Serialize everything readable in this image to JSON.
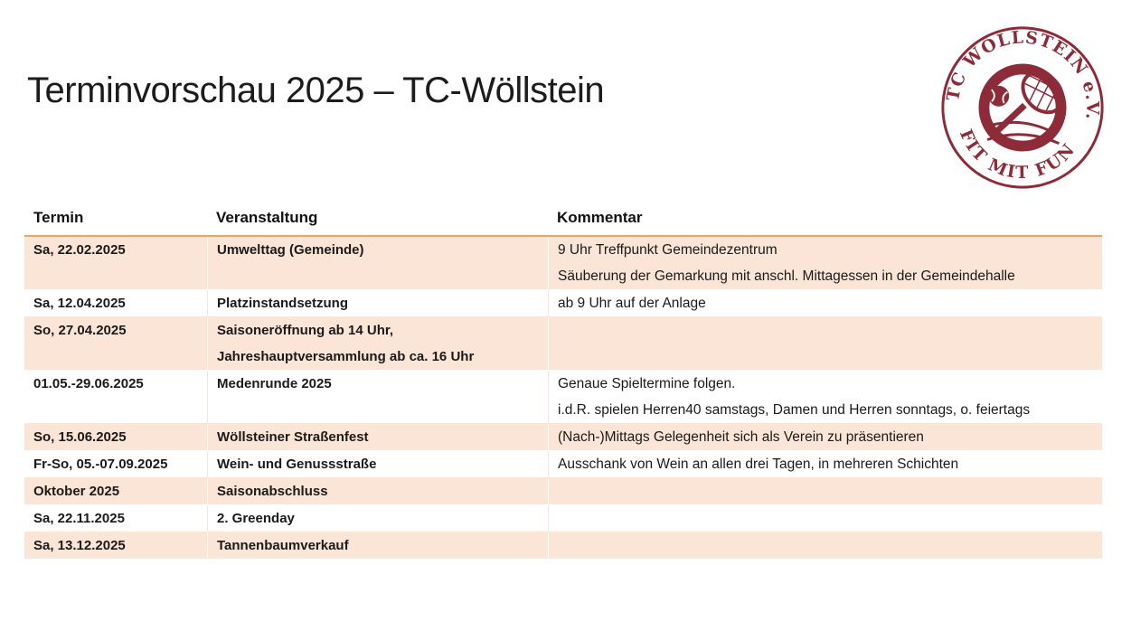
{
  "page": {
    "title": "Terminvorschau 2025 – TC-Wöllstein"
  },
  "logo": {
    "top_text": "TC WÖLLSTEIN e.V.",
    "bottom_text": "FIT MIT FUN",
    "color": "#8D2B38"
  },
  "colors": {
    "row_shade": "#FBE5D6",
    "header_rule": "#F0A263",
    "logo_maroon": "#8D2B38",
    "text": "#1a1a1a"
  },
  "table": {
    "headers": [
      "Termin",
      "Veranstaltung",
      "Kommentar"
    ],
    "rows": [
      {
        "termin": "Sa, 22.02.2025",
        "veranstaltung": [
          "Umwelttag (Gemeinde)"
        ],
        "kommentar": [
          "9 Uhr Treffpunkt Gemeindezentrum",
          "Säuberung der Gemarkung mit anschl. Mittagessen in der Gemeindehalle"
        ],
        "shaded": true
      },
      {
        "termin": "Sa, 12.04.2025",
        "veranstaltung": [
          "Platzinstandsetzung"
        ],
        "kommentar": [
          "ab 9 Uhr auf der Anlage"
        ],
        "shaded": false
      },
      {
        "termin": "So, 27.04.2025",
        "veranstaltung": [
          "Saisoneröffnung ab 14 Uhr,",
          "Jahreshauptversammlung ab ca. 16 Uhr"
        ],
        "kommentar": [],
        "shaded": true
      },
      {
        "termin": "01.05.-29.06.2025",
        "veranstaltung": [
          "Medenrunde 2025"
        ],
        "kommentar": [
          "Genaue Spieltermine folgen.",
          "i.d.R. spielen Herren40 samstags, Damen und Herren sonntags, o. feiertags"
        ],
        "shaded": false
      },
      {
        "termin": "So, 15.06.2025",
        "veranstaltung": [
          "Wöllsteiner Straßenfest"
        ],
        "kommentar": [
          "(Nach-)Mittags Gelegenheit sich als Verein zu präsentieren"
        ],
        "shaded": true
      },
      {
        "termin": "Fr-So, 05.-07.09.2025",
        "veranstaltung": [
          "Wein- und Genussstraße"
        ],
        "kommentar": [
          "Ausschank von Wein an allen drei Tagen, in mehreren Schichten"
        ],
        "shaded": false
      },
      {
        "termin": "Oktober 2025",
        "veranstaltung": [
          "Saisonabschluss"
        ],
        "kommentar": [],
        "shaded": true
      },
      {
        "termin": "Sa, 22.11.2025",
        "veranstaltung": [
          "2. Greenday"
        ],
        "kommentar": [],
        "shaded": false
      },
      {
        "termin": "Sa, 13.12.2025",
        "veranstaltung": [
          "Tannenbaumverkauf"
        ],
        "kommentar": [],
        "shaded": true
      }
    ]
  }
}
